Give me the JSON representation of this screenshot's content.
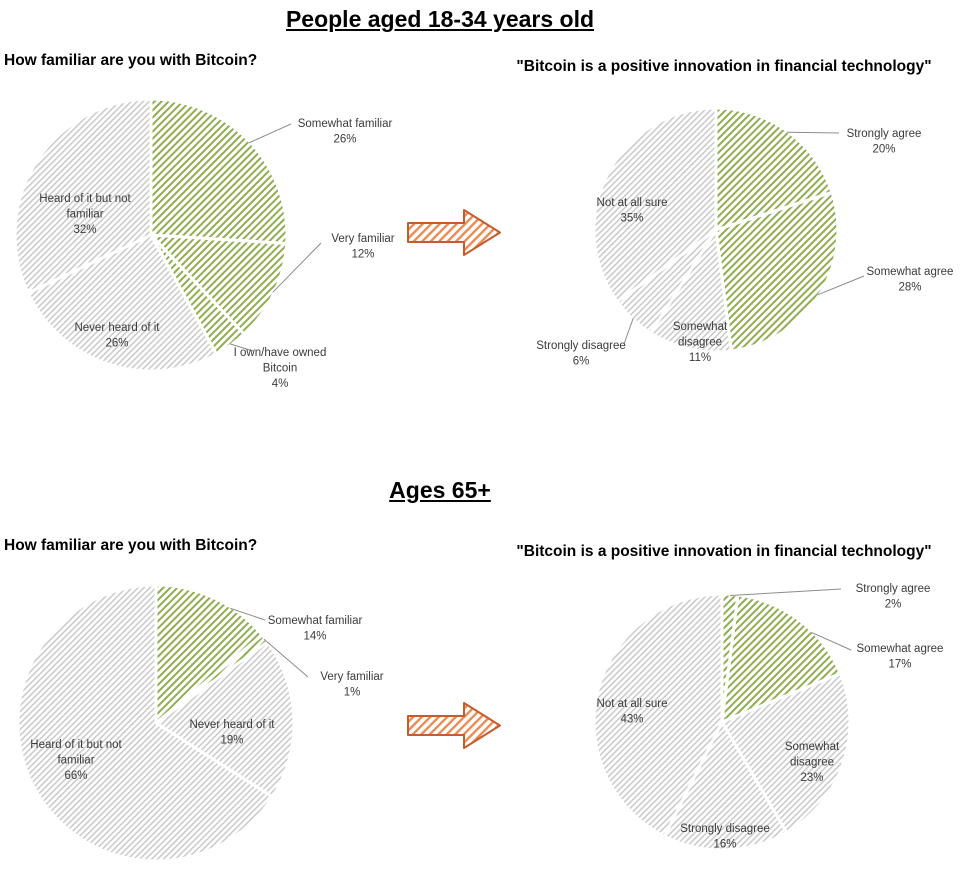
{
  "sections": [
    {
      "title": "People aged 18-34 years old"
    },
    {
      "title": "Ages 65+"
    }
  ],
  "chart_data": [
    {
      "type": "pie",
      "section": "People aged 18-34 years old",
      "title": "How familiar are you with Bitcoin?",
      "units": "percent",
      "start_angle": "12 o'clock",
      "direction": "clockwise",
      "pattern": "diagonal-hatch",
      "slices": [
        {
          "label": "Somewhat familiar",
          "value": 26,
          "tone": "green",
          "label_placement": "outside"
        },
        {
          "label": "Very familiar",
          "value": 12,
          "tone": "green",
          "label_placement": "outside"
        },
        {
          "label": "I own/have owned Bitcoin",
          "value": 4,
          "tone": "green",
          "label_placement": "outside"
        },
        {
          "label": "Never heard of it",
          "value": 26,
          "tone": "gray",
          "label_placement": "inside"
        },
        {
          "label": "Heard of it but not familiar",
          "value": 32,
          "tone": "gray",
          "label_placement": "inside"
        }
      ]
    },
    {
      "type": "pie",
      "section": "People aged 18-34 years old",
      "title": "\"Bitcoin is a positive innovation in financial technology\"",
      "units": "percent",
      "start_angle": "12 o'clock",
      "direction": "clockwise",
      "pattern": "diagonal-hatch",
      "slices": [
        {
          "label": "Strongly agree",
          "value": 20,
          "tone": "green",
          "label_placement": "outside"
        },
        {
          "label": "Somewhat agree",
          "value": 28,
          "tone": "green",
          "label_placement": "outside"
        },
        {
          "label": "Somewhat disagree",
          "value": 11,
          "tone": "gray",
          "label_placement": "inside"
        },
        {
          "label": "Strongly disagree",
          "value": 6,
          "tone": "gray",
          "label_placement": "outside"
        },
        {
          "label": "Not at all sure",
          "value": 35,
          "tone": "gray",
          "label_placement": "inside"
        }
      ]
    },
    {
      "type": "pie",
      "section": "Ages 65+",
      "title": "How familiar are you with Bitcoin?",
      "units": "percent",
      "start_angle": "12 o'clock",
      "direction": "clockwise",
      "pattern": "diagonal-hatch",
      "slices": [
        {
          "label": "Somewhat familiar",
          "value": 14,
          "tone": "green",
          "label_placement": "outside"
        },
        {
          "label": "Very familiar",
          "value": 1,
          "tone": "green",
          "label_placement": "outside"
        },
        {
          "label": "Never heard of it",
          "value": 19,
          "tone": "gray",
          "label_placement": "inside"
        },
        {
          "label": "Heard of it but not familiar",
          "value": 66,
          "tone": "gray",
          "label_placement": "inside"
        }
      ]
    },
    {
      "type": "pie",
      "section": "Ages 65+",
      "title": "\"Bitcoin is a positive innovation in financial technology\"",
      "units": "percent",
      "start_angle": "12 o'clock",
      "direction": "clockwise",
      "pattern": "diagonal-hatch",
      "slices": [
        {
          "label": "Strongly agree",
          "value": 2,
          "tone": "green",
          "label_placement": "outside"
        },
        {
          "label": "Somewhat agree",
          "value": 17,
          "tone": "green",
          "label_placement": "outside"
        },
        {
          "label": "Somewhat disagree",
          "value": 23,
          "tone": "gray",
          "label_placement": "inside"
        },
        {
          "label": "Strongly disagree",
          "value": 16,
          "tone": "gray",
          "label_placement": "inside"
        },
        {
          "label": "Not at all sure",
          "value": 43,
          "tone": "gray",
          "label_placement": "inside"
        }
      ]
    }
  ],
  "arrows": {
    "direction": "right",
    "style": "hatched-block-arrow",
    "count": 2
  },
  "colors": {
    "green_hatch": "#8fae4f",
    "gray_hatch": "#c9c9c9",
    "arrow_outline": "#c65c2b",
    "arrow_hatch": "#e98c54",
    "leader_line": "#8c8c8c",
    "label_text": "#3b3b3b"
  },
  "value_suffix": "%"
}
